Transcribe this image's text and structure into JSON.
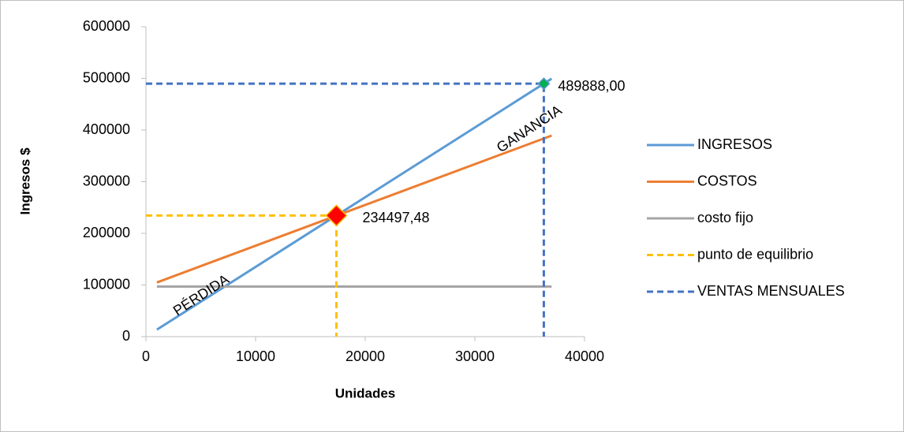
{
  "chart_data": {
    "type": "line",
    "xlabel": "Unidades",
    "ylabel": "Ingresos $",
    "xlim": [
      0,
      40000
    ],
    "ylim": [
      0,
      600000
    ],
    "xticks": [
      0,
      10000,
      20000,
      30000,
      40000
    ],
    "yticks": [
      0,
      100000,
      200000,
      300000,
      400000,
      500000,
      600000
    ],
    "grid": false,
    "legend": "right",
    "series": [
      {
        "name": "INGRESOS",
        "color": "#5b9bd5",
        "dash": false,
        "x": [
          1000,
          37000
        ],
        "values": [
          13500,
          499500
        ]
      },
      {
        "name": "COSTOS",
        "color": "#ed7d31",
        "dash": false,
        "x": [
          1000,
          37000
        ],
        "values": [
          104900,
          389300
        ]
      },
      {
        "name": "costo fijo",
        "color": "#a5a5a5",
        "dash": false,
        "x": [
          1000,
          37000
        ],
        "values": [
          97000,
          97000
        ]
      },
      {
        "name": "punto de equilibrio",
        "color": "#ffc000",
        "dash": true,
        "x": [
          0,
          17370,
          17370
        ],
        "values": [
          234497.48,
          234497.48,
          0
        ]
      },
      {
        "name": "VENTAS MENSUALES",
        "color": "#4472c4",
        "dash": true,
        "x": [
          0,
          36288,
          36288
        ],
        "values": [
          489888,
          489888,
          0
        ]
      }
    ],
    "points": [
      {
        "x": 17370,
        "y": 234497.48,
        "label": "234497,48",
        "color": "#ff0000",
        "edge": "#ffc000",
        "size": 13
      },
      {
        "x": 36288,
        "y": 489888,
        "label": "489888,00",
        "color": "#00b050",
        "edge": "#5b9bd5",
        "size": 7
      }
    ],
    "annotations": [
      "PÉRDIDA",
      "GANANCIA"
    ]
  }
}
